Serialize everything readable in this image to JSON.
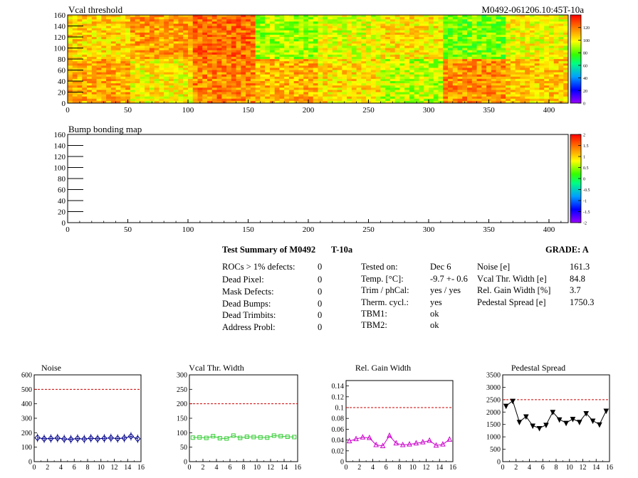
{
  "module_id": "M0492-061206.10:45T-10a",
  "summary": {
    "title": "Test Summary of M0492",
    "test_label": "T-10a",
    "grade": "GRADE:  A",
    "defects": [
      {
        "label": "ROCs > 1% defects:",
        "value": "0"
      },
      {
        "label": "Dead Pixel:",
        "value": "0"
      },
      {
        "label": "Mask Defects:",
        "value": "0"
      },
      {
        "label": "Dead Bumps:",
        "value": "0"
      },
      {
        "label": "Dead Trimbits:",
        "value": "0"
      },
      {
        "label": "Address Probl:",
        "value": "0"
      }
    ],
    "conditions": [
      {
        "label": "Tested on:",
        "value": "Dec 6"
      },
      {
        "label": "Temp. [°C]:",
        "value": "-9.7 +- 0.6"
      },
      {
        "label": "Trim / phCal:",
        "value": "yes / yes"
      },
      {
        "label": "Therm. cycl.:",
        "value": "yes"
      },
      {
        "label": "TBM1:",
        "value": "ok"
      },
      {
        "label": "TBM2:",
        "value": "ok"
      }
    ],
    "results": [
      {
        "label": "Noise [e]",
        "value": "161.3"
      },
      {
        "label": "Vcal Thr. Width [e]",
        "value": "84.8"
      },
      {
        "label": "Rel. Gain Width [%]",
        "value": "3.7"
      },
      {
        "label": "Pedestal Spread [e]",
        "value": "1750.3"
      }
    ]
  },
  "chart_data": [
    {
      "type": "heatmap",
      "title": "Vcal threshold",
      "x_ticks": [
        "0",
        "50",
        "100",
        "150",
        "200",
        "250",
        "300",
        "350",
        "400"
      ],
      "y_ticks": [
        "0",
        "20",
        "40",
        "60",
        "80",
        "100",
        "120",
        "140",
        "160"
      ],
      "xlim": [
        0,
        416
      ],
      "ylim": [
        0,
        160
      ],
      "colorbar_ticks": [
        "0",
        "20",
        "40",
        "60",
        "80",
        "100",
        "120"
      ],
      "zlim": [
        0,
        140
      ],
      "roc_mean_levels": {
        "top_row_x_0_to_416": [
          105,
          114,
          122,
          88,
          96,
          102,
          83,
          98
        ],
        "bottom_row_x_0_to_416": [
          112,
          100,
          118,
          110,
          103,
          91,
          116,
          106
        ]
      }
    },
    {
      "type": "heatmap",
      "title": "Bump bonding map",
      "x_ticks": [
        "0",
        "50",
        "100",
        "150",
        "200",
        "250",
        "300",
        "350",
        "400"
      ],
      "y_ticks": [
        "0",
        "20",
        "40",
        "60",
        "80",
        "100",
        "120",
        "140",
        "160"
      ],
      "xlim": [
        0,
        416
      ],
      "ylim": [
        0,
        160
      ],
      "colorbar_ticks": [
        "-2",
        "-1.5",
        "-1",
        "-0.5",
        "0",
        "0.5",
        "1",
        "1.5",
        "2"
      ],
      "zlim": [
        -2,
        2
      ],
      "values": []
    },
    {
      "type": "scatter",
      "title": "Noise",
      "x_ticks": [
        "0",
        "2",
        "4",
        "6",
        "8",
        "10",
        "12",
        "14",
        "16"
      ],
      "y_ticks": [
        "0",
        "100",
        "200",
        "300",
        "400",
        "500",
        "600"
      ],
      "xlim": [
        0,
        16
      ],
      "ylim": [
        0,
        600
      ],
      "limit": 500,
      "color": "#00008b",
      "marker": "diamond",
      "x": [
        0.5,
        1.5,
        2.5,
        3.5,
        4.5,
        5.5,
        6.5,
        7.5,
        8.5,
        9.5,
        10.5,
        11.5,
        12.5,
        13.5,
        14.5,
        15.5
      ],
      "y": [
        165,
        158,
        160,
        163,
        157,
        155,
        160,
        156,
        162,
        158,
        161,
        164,
        160,
        163,
        175,
        158
      ]
    },
    {
      "type": "scatter",
      "title": "Vcal Thr. Width",
      "x_ticks": [
        "0",
        "2",
        "4",
        "6",
        "8",
        "10",
        "12",
        "14",
        "16"
      ],
      "y_ticks": [
        "0",
        "50",
        "100",
        "150",
        "200",
        "250",
        "300"
      ],
      "xlim": [
        0,
        16
      ],
      "ylim": [
        0,
        300
      ],
      "limit": 200,
      "color": "#33cc33",
      "marker": "square",
      "x": [
        0.5,
        1.5,
        2.5,
        3.5,
        4.5,
        5.5,
        6.5,
        7.5,
        8.5,
        9.5,
        10.5,
        11.5,
        12.5,
        13.5,
        14.5,
        15.5
      ],
      "y": [
        83,
        84,
        82,
        88,
        81,
        80,
        90,
        82,
        86,
        85,
        84,
        83,
        90,
        88,
        86,
        85
      ]
    },
    {
      "type": "scatter",
      "title": "Rel. Gain Width",
      "x_ticks": [
        "0",
        "2",
        "4",
        "6",
        "8",
        "10",
        "12",
        "14",
        "16"
      ],
      "y_ticks": [
        "0",
        "0.02",
        "0.04",
        "0.06",
        "0.08",
        "0.1",
        "0.12",
        "0.14"
      ],
      "xlim": [
        0,
        16
      ],
      "ylim": [
        0,
        0.15
      ],
      "limit": 0.1,
      "color": "#cc00cc",
      "marker": "triangle",
      "x": [
        0.5,
        1.5,
        2.5,
        3.5,
        4.5,
        5.5,
        6.5,
        7.5,
        8.5,
        9.5,
        10.5,
        11.5,
        12.5,
        13.5,
        14.5,
        15.5
      ],
      "y": [
        0.038,
        0.042,
        0.045,
        0.044,
        0.031,
        0.029,
        0.048,
        0.034,
        0.031,
        0.032,
        0.034,
        0.036,
        0.039,
        0.03,
        0.032,
        0.041
      ]
    },
    {
      "type": "line",
      "title": "Pedestal Spread",
      "x_ticks": [
        "0",
        "2",
        "4",
        "6",
        "8",
        "10",
        "12",
        "14",
        "16"
      ],
      "y_ticks": [
        "0",
        "500",
        "1000",
        "1500",
        "2000",
        "2500",
        "3000",
        "3500"
      ],
      "xlim": [
        0,
        16
      ],
      "ylim": [
        0,
        3500
      ],
      "limit": 2500,
      "color": "#000000",
      "marker": "triangle-down",
      "x": [
        0.5,
        1.5,
        2.5,
        3.5,
        4.5,
        5.5,
        6.5,
        7.5,
        8.5,
        9.5,
        10.5,
        11.5,
        12.5,
        13.5,
        14.5,
        15.5
      ],
      "y": [
        2250,
        2450,
        1600,
        1820,
        1450,
        1350,
        1480,
        2000,
        1700,
        1560,
        1720,
        1600,
        1950,
        1650,
        1500,
        2050
      ]
    }
  ]
}
